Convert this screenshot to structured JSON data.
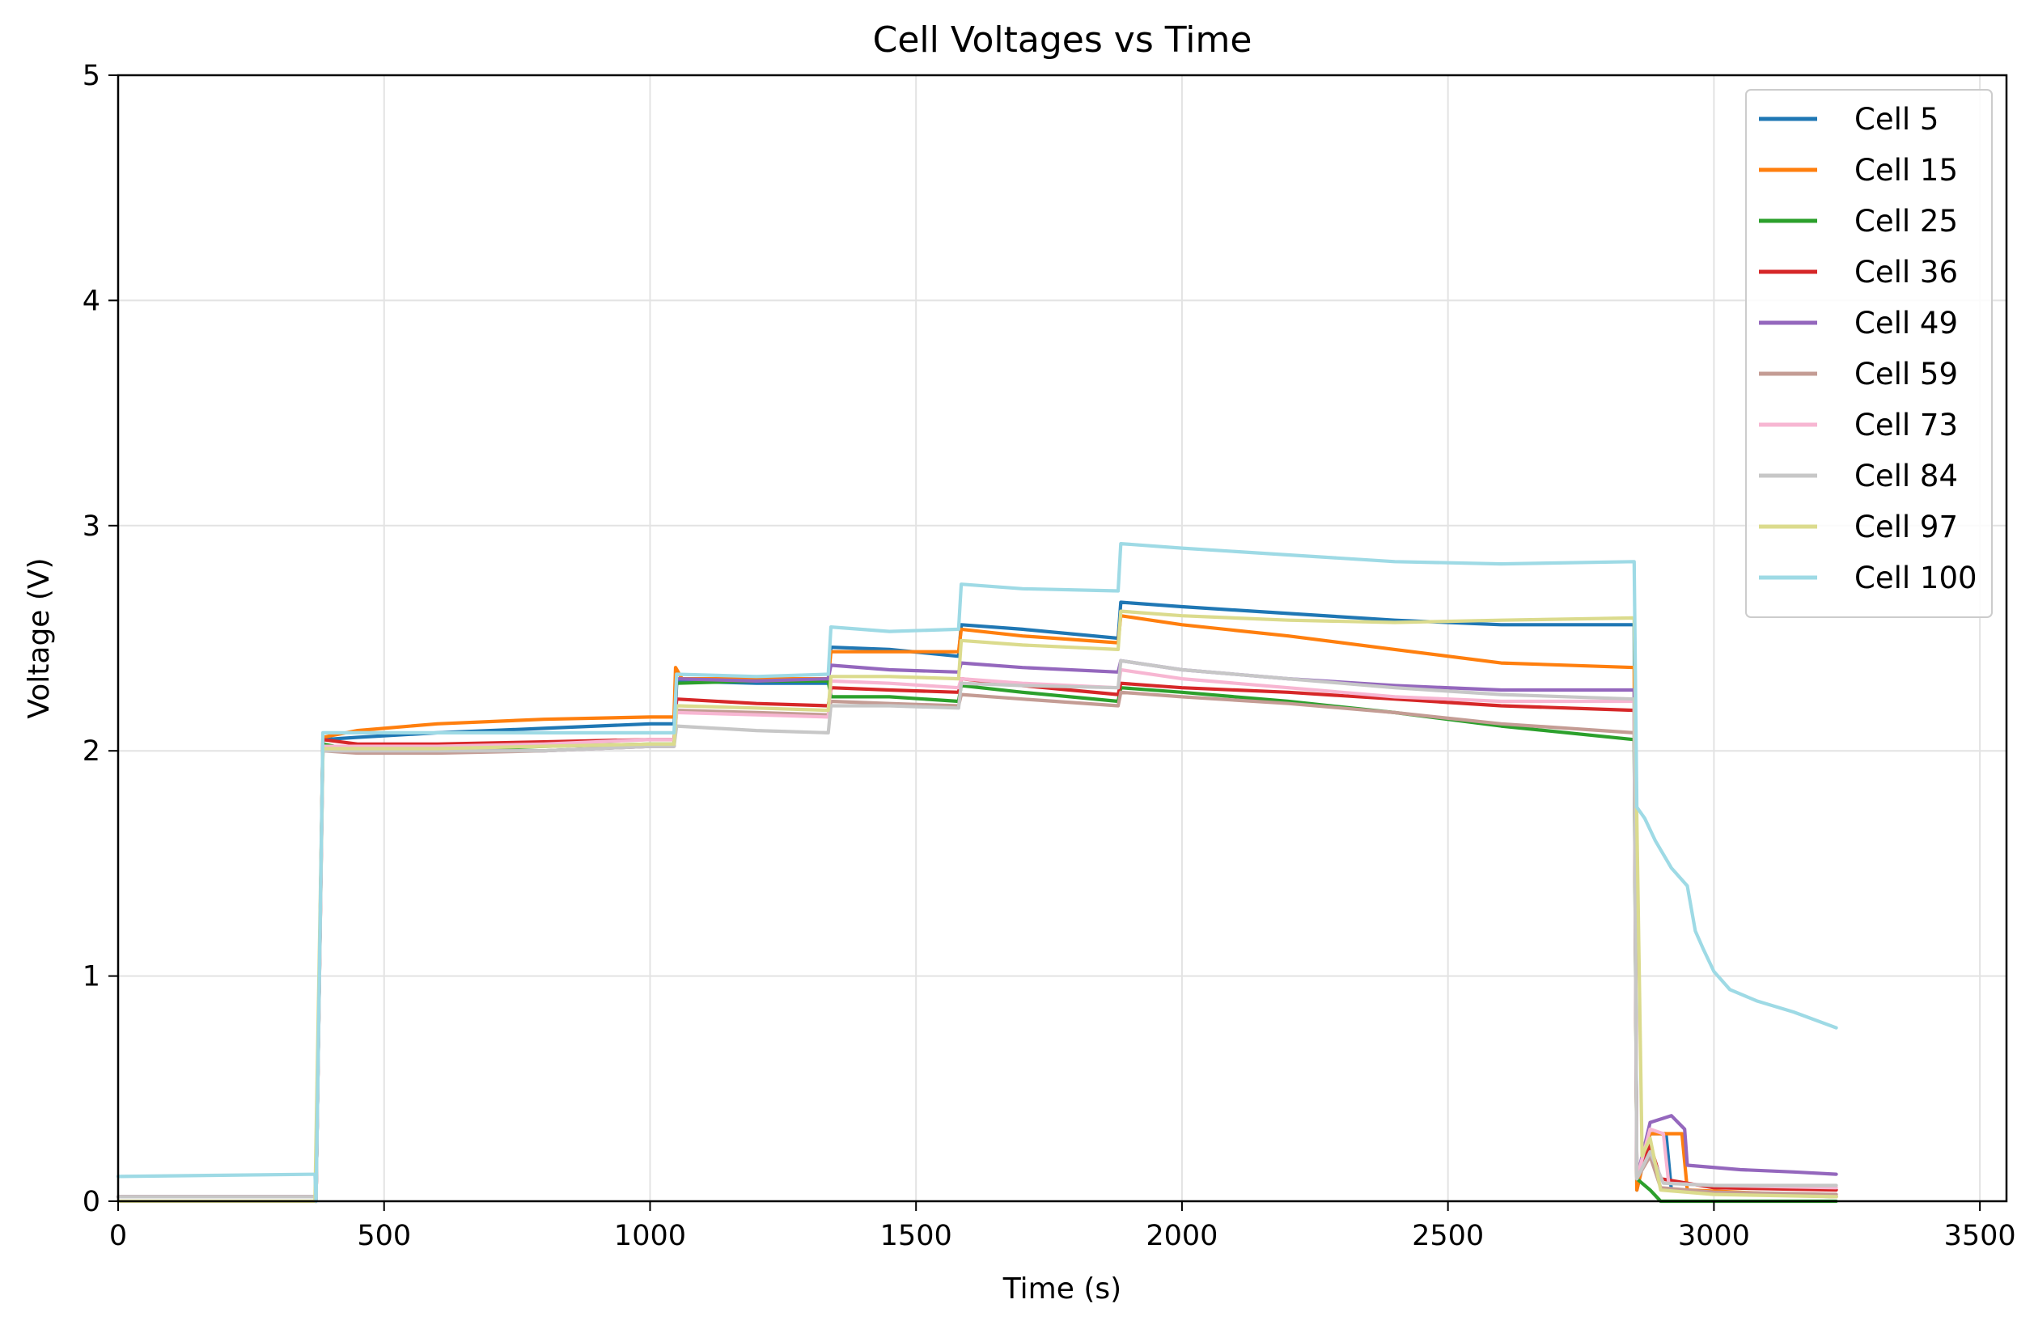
{
  "chart_data": {
    "type": "line",
    "title": "Cell Voltages vs Time",
    "xlabel": "Time (s)",
    "ylabel": "Voltage (V)",
    "xlim": [
      0,
      3550
    ],
    "ylim": [
      0,
      5
    ],
    "xticks": [
      0,
      500,
      1000,
      1500,
      2000,
      2500,
      3000,
      3500
    ],
    "yticks": [
      0,
      1,
      2,
      3,
      4,
      5
    ],
    "grid": true,
    "legend_position": "top-right",
    "series": [
      {
        "name": "Cell 5",
        "color": "#1f77b4",
        "points": [
          [
            0,
            0.02
          ],
          [
            370,
            0.02
          ],
          [
            372,
            0.0
          ],
          [
            385,
            2.05
          ],
          [
            450,
            2.06
          ],
          [
            600,
            2.08
          ],
          [
            800,
            2.1
          ],
          [
            1000,
            2.12
          ],
          [
            1045,
            2.12
          ],
          [
            1050,
            2.31
          ],
          [
            1200,
            2.3
          ],
          [
            1335,
            2.3
          ],
          [
            1340,
            2.46
          ],
          [
            1450,
            2.45
          ],
          [
            1580,
            2.42
          ],
          [
            1585,
            2.56
          ],
          [
            1700,
            2.54
          ],
          [
            1880,
            2.5
          ],
          [
            1885,
            2.66
          ],
          [
            2000,
            2.64
          ],
          [
            2200,
            2.61
          ],
          [
            2400,
            2.58
          ],
          [
            2600,
            2.56
          ],
          [
            2850,
            2.56
          ],
          [
            2855,
            0.05
          ],
          [
            2880,
            0.3
          ],
          [
            2910,
            0.3
          ],
          [
            2920,
            0.05
          ],
          [
            3000,
            0.04
          ],
          [
            3100,
            0.03
          ],
          [
            3230,
            0.02
          ]
        ]
      },
      {
        "name": "Cell 15",
        "color": "#ff7f0e",
        "points": [
          [
            0,
            0.02
          ],
          [
            370,
            0.02
          ],
          [
            372,
            0.0
          ],
          [
            385,
            2.06
          ],
          [
            450,
            2.09
          ],
          [
            600,
            2.12
          ],
          [
            800,
            2.14
          ],
          [
            1000,
            2.15
          ],
          [
            1045,
            2.15
          ],
          [
            1048,
            2.37
          ],
          [
            1060,
            2.32
          ],
          [
            1200,
            2.32
          ],
          [
            1335,
            2.32
          ],
          [
            1340,
            2.44
          ],
          [
            1450,
            2.44
          ],
          [
            1580,
            2.44
          ],
          [
            1585,
            2.54
          ],
          [
            1700,
            2.51
          ],
          [
            1880,
            2.48
          ],
          [
            1885,
            2.6
          ],
          [
            2000,
            2.56
          ],
          [
            2200,
            2.51
          ],
          [
            2400,
            2.45
          ],
          [
            2600,
            2.39
          ],
          [
            2850,
            2.37
          ],
          [
            2855,
            0.05
          ],
          [
            2880,
            0.3
          ],
          [
            2940,
            0.3
          ],
          [
            2950,
            0.05
          ],
          [
            3050,
            0.04
          ],
          [
            3230,
            0.02
          ]
        ]
      },
      {
        "name": "Cell 25",
        "color": "#2ca02c",
        "points": [
          [
            0,
            0.02
          ],
          [
            370,
            0.02
          ],
          [
            372,
            0.0
          ],
          [
            385,
            2.03
          ],
          [
            450,
            2.0
          ],
          [
            600,
            2.0
          ],
          [
            800,
            2.02
          ],
          [
            1000,
            2.03
          ],
          [
            1045,
            2.03
          ],
          [
            1050,
            2.3
          ],
          [
            1200,
            2.31
          ],
          [
            1335,
            2.31
          ],
          [
            1340,
            2.24
          ],
          [
            1450,
            2.24
          ],
          [
            1580,
            2.22
          ],
          [
            1585,
            2.29
          ],
          [
            1700,
            2.26
          ],
          [
            1880,
            2.22
          ],
          [
            1885,
            2.28
          ],
          [
            2000,
            2.26
          ],
          [
            2200,
            2.22
          ],
          [
            2400,
            2.17
          ],
          [
            2600,
            2.11
          ],
          [
            2850,
            2.05
          ],
          [
            2855,
            0.1
          ],
          [
            2880,
            0.05
          ],
          [
            2900,
            0.0
          ],
          [
            3230,
            0.0
          ]
        ]
      },
      {
        "name": "Cell 36",
        "color": "#d62728",
        "points": [
          [
            0,
            0.02
          ],
          [
            370,
            0.02
          ],
          [
            372,
            0.0
          ],
          [
            385,
            2.05
          ],
          [
            450,
            2.03
          ],
          [
            600,
            2.03
          ],
          [
            800,
            2.04
          ],
          [
            1000,
            2.05
          ],
          [
            1045,
            2.05
          ],
          [
            1050,
            2.23
          ],
          [
            1200,
            2.21
          ],
          [
            1335,
            2.2
          ],
          [
            1340,
            2.28
          ],
          [
            1450,
            2.27
          ],
          [
            1580,
            2.26
          ],
          [
            1585,
            2.32
          ],
          [
            1700,
            2.29
          ],
          [
            1880,
            2.25
          ],
          [
            1885,
            2.3
          ],
          [
            2000,
            2.28
          ],
          [
            2200,
            2.26
          ],
          [
            2400,
            2.23
          ],
          [
            2600,
            2.2
          ],
          [
            2850,
            2.18
          ],
          [
            2855,
            0.1
          ],
          [
            2880,
            0.25
          ],
          [
            2900,
            0.1
          ],
          [
            3000,
            0.06
          ],
          [
            3230,
            0.05
          ]
        ]
      },
      {
        "name": "Cell 49",
        "color": "#9467bd",
        "points": [
          [
            0,
            0.02
          ],
          [
            370,
            0.02
          ],
          [
            372,
            0.0
          ],
          [
            385,
            2.02
          ],
          [
            450,
            2.0
          ],
          [
            600,
            2.0
          ],
          [
            800,
            2.0
          ],
          [
            1000,
            2.02
          ],
          [
            1045,
            2.02
          ],
          [
            1050,
            2.32
          ],
          [
            1200,
            2.31
          ],
          [
            1335,
            2.32
          ],
          [
            1340,
            2.38
          ],
          [
            1450,
            2.36
          ],
          [
            1580,
            2.35
          ],
          [
            1585,
            2.39
          ],
          [
            1700,
            2.37
          ],
          [
            1880,
            2.35
          ],
          [
            1885,
            2.4
          ],
          [
            2000,
            2.36
          ],
          [
            2200,
            2.32
          ],
          [
            2400,
            2.29
          ],
          [
            2600,
            2.27
          ],
          [
            2850,
            2.27
          ],
          [
            2855,
            0.1
          ],
          [
            2880,
            0.35
          ],
          [
            2920,
            0.38
          ],
          [
            2945,
            0.32
          ],
          [
            2950,
            0.16
          ],
          [
            3050,
            0.14
          ],
          [
            3150,
            0.13
          ],
          [
            3230,
            0.12
          ]
        ]
      },
      {
        "name": "Cell 59",
        "color": "#c49c94",
        "points": [
          [
            0,
            0.02
          ],
          [
            370,
            0.02
          ],
          [
            372,
            0.0
          ],
          [
            385,
            2.0
          ],
          [
            450,
            1.99
          ],
          [
            600,
            1.99
          ],
          [
            800,
            2.0
          ],
          [
            1000,
            2.02
          ],
          [
            1045,
            2.02
          ],
          [
            1050,
            2.18
          ],
          [
            1200,
            2.17
          ],
          [
            1335,
            2.16
          ],
          [
            1340,
            2.22
          ],
          [
            1450,
            2.21
          ],
          [
            1580,
            2.2
          ],
          [
            1585,
            2.25
          ],
          [
            1700,
            2.23
          ],
          [
            1880,
            2.2
          ],
          [
            1885,
            2.26
          ],
          [
            2000,
            2.24
          ],
          [
            2200,
            2.21
          ],
          [
            2400,
            2.17
          ],
          [
            2600,
            2.12
          ],
          [
            2850,
            2.08
          ],
          [
            2855,
            0.1
          ],
          [
            2880,
            0.2
          ],
          [
            2900,
            0.06
          ],
          [
            3000,
            0.04
          ],
          [
            3230,
            0.03
          ]
        ]
      },
      {
        "name": "Cell 73",
        "color": "#f7b6d2",
        "points": [
          [
            0,
            0.02
          ],
          [
            370,
            0.02
          ],
          [
            372,
            0.0
          ],
          [
            385,
            2.02
          ],
          [
            450,
            2.02
          ],
          [
            600,
            2.02
          ],
          [
            800,
            2.03
          ],
          [
            1000,
            2.05
          ],
          [
            1045,
            2.05
          ],
          [
            1050,
            2.17
          ],
          [
            1200,
            2.16
          ],
          [
            1335,
            2.15
          ],
          [
            1340,
            2.31
          ],
          [
            1450,
            2.3
          ],
          [
            1580,
            2.28
          ],
          [
            1585,
            2.32
          ],
          [
            1700,
            2.3
          ],
          [
            1880,
            2.28
          ],
          [
            1885,
            2.36
          ],
          [
            2000,
            2.32
          ],
          [
            2200,
            2.28
          ],
          [
            2400,
            2.24
          ],
          [
            2600,
            2.22
          ],
          [
            2850,
            2.22
          ],
          [
            2855,
            0.1
          ],
          [
            2880,
            0.32
          ],
          [
            2905,
            0.3
          ],
          [
            2915,
            0.08
          ],
          [
            3000,
            0.07
          ],
          [
            3230,
            0.06
          ]
        ]
      },
      {
        "name": "Cell 84",
        "color": "#c7c7c7",
        "points": [
          [
            0,
            0.02
          ],
          [
            370,
            0.02
          ],
          [
            372,
            0.0
          ],
          [
            385,
            2.0
          ],
          [
            450,
            2.0
          ],
          [
            600,
            2.0
          ],
          [
            800,
            2.0
          ],
          [
            1000,
            2.02
          ],
          [
            1045,
            2.02
          ],
          [
            1050,
            2.11
          ],
          [
            1200,
            2.09
          ],
          [
            1335,
            2.08
          ],
          [
            1340,
            2.2
          ],
          [
            1450,
            2.2
          ],
          [
            1580,
            2.19
          ],
          [
            1585,
            2.3
          ],
          [
            1700,
            2.29
          ],
          [
            1880,
            2.28
          ],
          [
            1885,
            2.4
          ],
          [
            2000,
            2.36
          ],
          [
            2200,
            2.32
          ],
          [
            2400,
            2.28
          ],
          [
            2600,
            2.25
          ],
          [
            2850,
            2.23
          ],
          [
            2855,
            0.1
          ],
          [
            2880,
            0.22
          ],
          [
            2905,
            0.08
          ],
          [
            3000,
            0.07
          ],
          [
            3230,
            0.07
          ]
        ]
      },
      {
        "name": "Cell 97",
        "color": "#dbdb8d",
        "points": [
          [
            0,
            0.0
          ],
          [
            370,
            0.0
          ],
          [
            385,
            2.01
          ],
          [
            450,
            2.01
          ],
          [
            600,
            2.01
          ],
          [
            800,
            2.02
          ],
          [
            1000,
            2.03
          ],
          [
            1045,
            2.03
          ],
          [
            1050,
            2.2
          ],
          [
            1200,
            2.19
          ],
          [
            1335,
            2.18
          ],
          [
            1340,
            2.33
          ],
          [
            1450,
            2.33
          ],
          [
            1580,
            2.32
          ],
          [
            1585,
            2.49
          ],
          [
            1700,
            2.47
          ],
          [
            1880,
            2.45
          ],
          [
            1885,
            2.62
          ],
          [
            2000,
            2.6
          ],
          [
            2200,
            2.58
          ],
          [
            2400,
            2.57
          ],
          [
            2600,
            2.58
          ],
          [
            2850,
            2.59
          ],
          [
            2855,
            1.7
          ],
          [
            2865,
            0.2
          ],
          [
            2880,
            0.28
          ],
          [
            2900,
            0.05
          ],
          [
            3000,
            0.03
          ],
          [
            3230,
            0.02
          ]
        ]
      },
      {
        "name": "Cell 100",
        "color": "#9edae5",
        "points": [
          [
            0,
            0.11
          ],
          [
            370,
            0.12
          ],
          [
            372,
            0.0
          ],
          [
            385,
            2.08
          ],
          [
            450,
            2.08
          ],
          [
            600,
            2.08
          ],
          [
            800,
            2.08
          ],
          [
            1000,
            2.08
          ],
          [
            1045,
            2.08
          ],
          [
            1050,
            2.34
          ],
          [
            1200,
            2.33
          ],
          [
            1335,
            2.34
          ],
          [
            1340,
            2.55
          ],
          [
            1450,
            2.53
          ],
          [
            1580,
            2.54
          ],
          [
            1585,
            2.74
          ],
          [
            1700,
            2.72
          ],
          [
            1880,
            2.71
          ],
          [
            1885,
            2.92
          ],
          [
            2000,
            2.9
          ],
          [
            2200,
            2.87
          ],
          [
            2400,
            2.84
          ],
          [
            2600,
            2.83
          ],
          [
            2850,
            2.84
          ],
          [
            2855,
            1.75
          ],
          [
            2870,
            1.7
          ],
          [
            2890,
            1.6
          ],
          [
            2920,
            1.48
          ],
          [
            2950,
            1.4
          ],
          [
            2965,
            1.2
          ],
          [
            2980,
            1.12
          ],
          [
            3000,
            1.02
          ],
          [
            3030,
            0.94
          ],
          [
            3080,
            0.89
          ],
          [
            3150,
            0.84
          ],
          [
            3230,
            0.77
          ]
        ]
      }
    ]
  }
}
